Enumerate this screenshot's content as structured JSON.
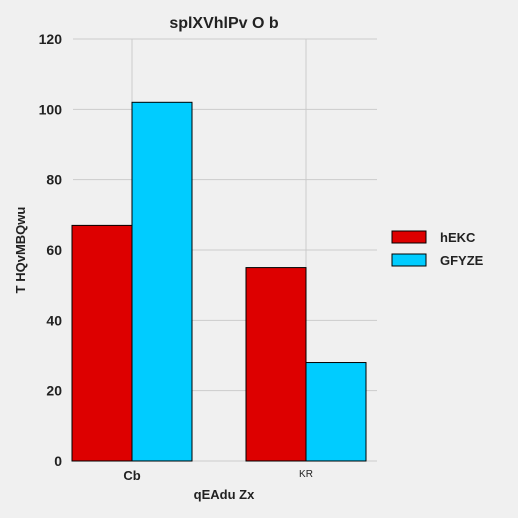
{
  "chart_data": {
    "type": "bar",
    "title": "splXVhlPv  O b",
    "xlabel": "qEAdu  Zx",
    "ylabel": "T HQvMBQwu",
    "categories": [
      "Cb",
      "KR"
    ],
    "series": [
      {
        "name": "hEKC",
        "values": [
          67,
          55
        ],
        "color": "#dd0000"
      },
      {
        "name": "GFYZE",
        "values": [
          102,
          28
        ],
        "color": "#00ccff"
      }
    ],
    "ylim": [
      0,
      120
    ],
    "yticks": [
      "0",
      "20",
      "40",
      "60",
      "80",
      "100",
      "120"
    ],
    "grid": true,
    "legend": "right"
  },
  "colors": {
    "background": "#f0f0f0",
    "grid": "#cbcbcb",
    "text": "#222222"
  }
}
